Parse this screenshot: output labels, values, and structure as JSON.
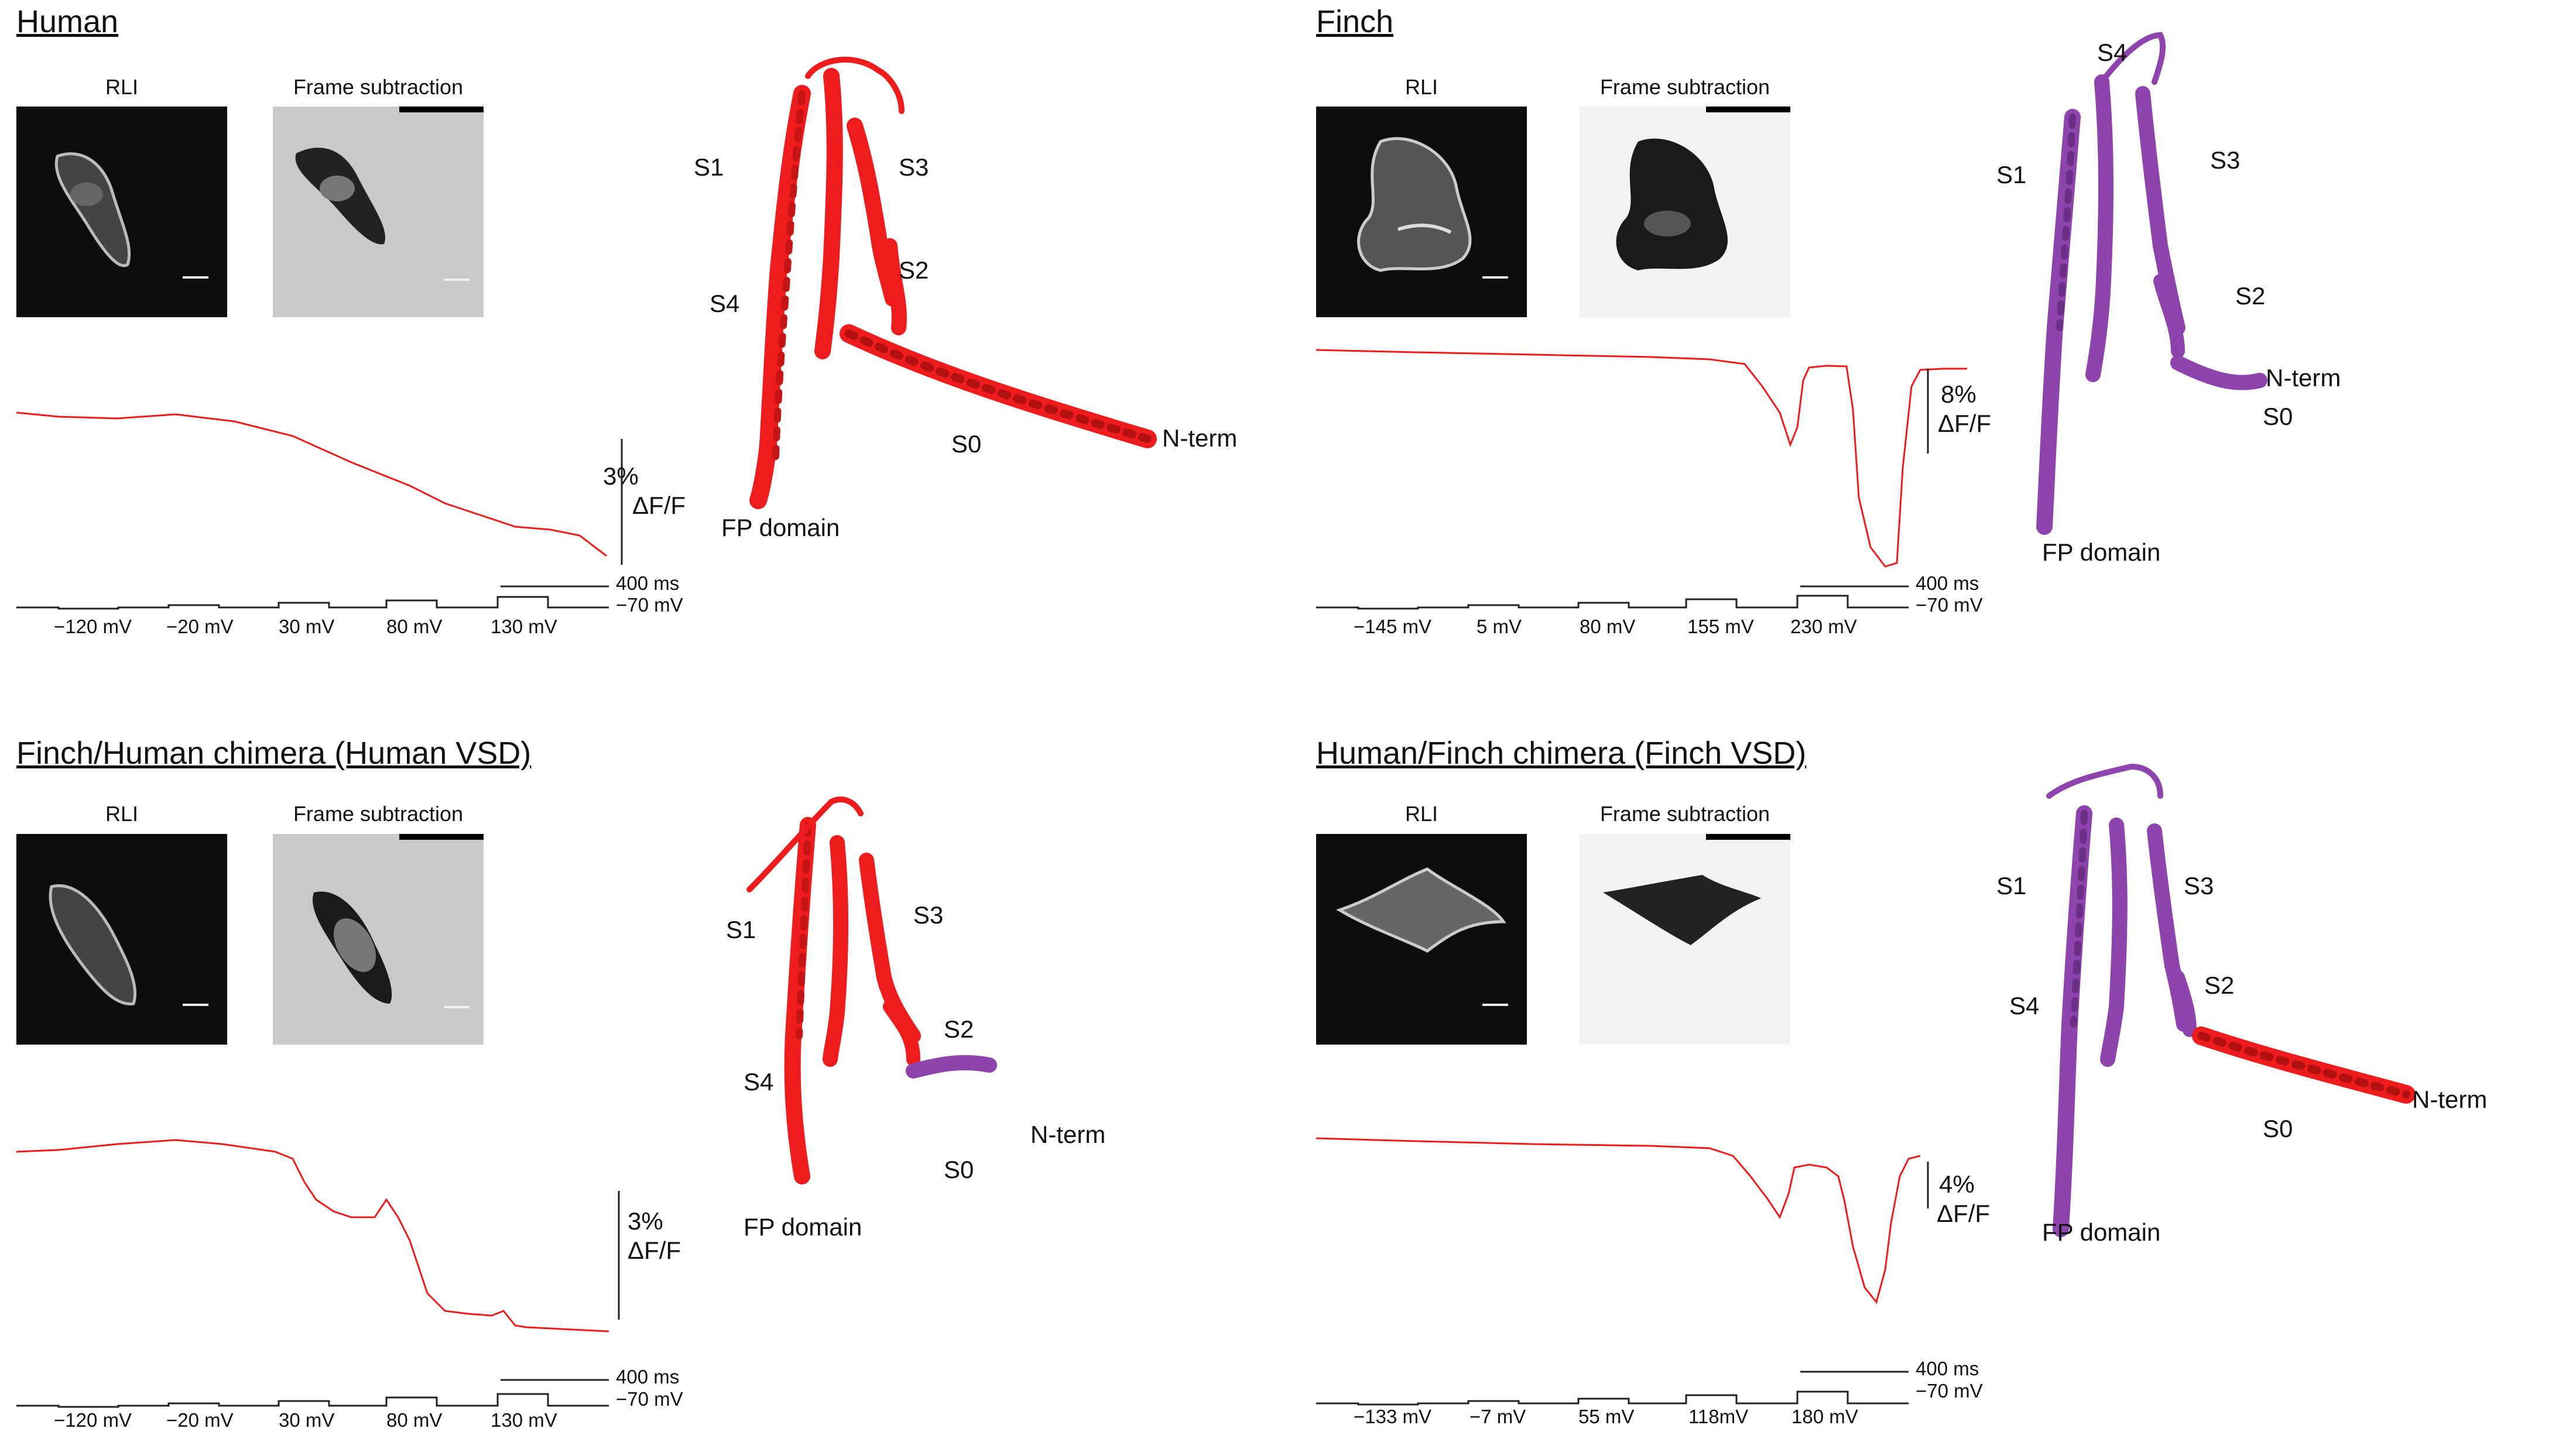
{
  "image_captions": {
    "rli": "RLI",
    "frame": "Frame subtraction"
  },
  "colors": {
    "trace": "#ee1c1c",
    "human_helix": "#ee1c1c",
    "finch_helix": "#8e44ad"
  },
  "panels": [
    {
      "title": "Human",
      "labels": {
        "s1": "S1",
        "s2": "S2",
        "s3": "S3",
        "s4": "S4",
        "s0": "S0",
        "nterm": "N-term",
        "fp": "FP domain"
      },
      "scale": {
        "pct": "3%",
        "dff": "ΔF/F",
        "time": "400 ms",
        "hold": "−70 mV"
      },
      "steps": [
        "−120 mV",
        "−20 mV",
        "30 mV",
        "80 mV",
        "130 mV"
      ]
    },
    {
      "title": "Finch",
      "labels": {
        "s1": "S1",
        "s2": "S2",
        "s3": "S3",
        "s4": "S4",
        "s0": "S0",
        "nterm": "N-term",
        "fp": "FP domain"
      },
      "scale": {
        "pct": "8%",
        "dff": "ΔF/F",
        "time": "400 ms",
        "hold": "−70 mV"
      },
      "steps": [
        "−145 mV",
        "5 mV",
        "80 mV",
        "155 mV",
        "230 mV"
      ]
    },
    {
      "title": "Finch/Human chimera (Human VSD)",
      "labels": {
        "s1": "S1",
        "s2": "S2",
        "s3": "S3",
        "s4": "S4",
        "s0": "S0",
        "nterm": "N-term",
        "fp": "FP domain"
      },
      "scale": {
        "pct": "3%",
        "dff": "ΔF/F",
        "time": "400 ms",
        "hold": "−70 mV"
      },
      "steps": [
        "−120 mV",
        "−20 mV",
        "30 mV",
        "80 mV",
        "130 mV"
      ]
    },
    {
      "title": "Human/Finch chimera (Finch VSD)",
      "labels": {
        "s1": "S1",
        "s2": "S2",
        "s3": "S3",
        "s4": "S4",
        "s0": "S0",
        "nterm": "N-term",
        "fp": "FP domain"
      },
      "scale": {
        "pct": "4%",
        "dff": "ΔF/F",
        "time": "400 ms",
        "hold": "−70 mV"
      },
      "steps": [
        "−133 mV",
        "−7 mV",
        "55 mV",
        "118mV",
        "180 mV"
      ]
    }
  ]
}
